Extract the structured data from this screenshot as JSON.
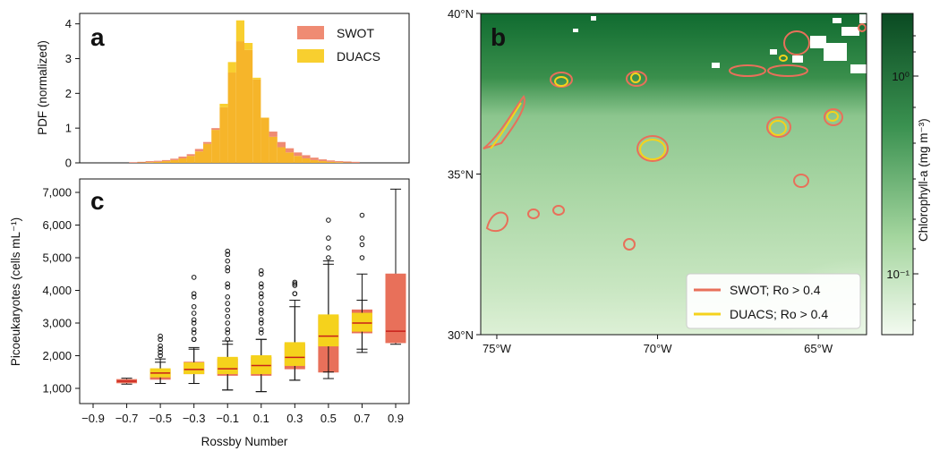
{
  "colors": {
    "swot": "#e8705a",
    "duacs": "#f5d21c",
    "swot_hist": "#ef8b73",
    "duacs_hist": "#f8cf2f",
    "overlap_hist": "#f6b52a",
    "median": "#c8201a",
    "map_dark": "#0e5a2c",
    "map_light": "#eef7ea"
  },
  "chart_data": [
    {
      "panel": "a",
      "type": "bar",
      "ylabel": "PDF (normalized)",
      "ylim": [
        0,
        4.3
      ],
      "y_ticks": [
        "0",
        "1",
        "2",
        "3",
        "4"
      ],
      "xlim": [
        -1.0,
        1.0
      ],
      "legend": "top-right",
      "series": [
        {
          "name": "SWOT",
          "bin_start": -0.7,
          "bin_width": 0.05,
          "values": [
            0.02,
            0.03,
            0.05,
            0.06,
            0.08,
            0.12,
            0.18,
            0.25,
            0.4,
            0.6,
            1.0,
            1.6,
            2.6,
            3.5,
            3.25,
            2.4,
            1.3,
            0.9,
            0.6,
            0.42,
            0.3,
            0.22,
            0.15,
            0.1,
            0.07,
            0.05,
            0.04,
            0.03
          ]
        },
        {
          "name": "DUACS",
          "bin_start": -0.7,
          "bin_width": 0.05,
          "values": [
            0.0,
            0.01,
            0.02,
            0.03,
            0.05,
            0.08,
            0.13,
            0.2,
            0.33,
            0.55,
            0.95,
            1.7,
            2.9,
            4.1,
            3.45,
            2.45,
            1.3,
            0.75,
            0.45,
            0.3,
            0.2,
            0.13,
            0.08,
            0.05,
            0.03,
            0.02,
            0.01,
            0.0
          ]
        }
      ]
    },
    {
      "panel": "c",
      "type": "box",
      "xlabel": "Rossby Number",
      "ylabel": "Picoeukaryotes (cells mL⁻¹)",
      "ylim": [
        600,
        7300
      ],
      "x_ticks": [
        "−0.9",
        "−0.7",
        "−0.5",
        "−0.3",
        "−0.1",
        "0.1",
        "0.3",
        "0.5",
        "0.7",
        "0.9"
      ],
      "y_ticks": [
        "1,000",
        "2,000",
        "3,000",
        "4,000",
        "5,000",
        "6,000",
        "7,000"
      ],
      "series": [
        {
          "name": "SWOT",
          "boxes": [
            {
              "x": -0.7,
              "q1": 1170,
              "median": 1220,
              "q3": 1270,
              "wlo": 1130,
              "whi": 1310,
              "outliers": []
            },
            {
              "x": -0.5,
              "q1": 1280,
              "median": 1420,
              "q3": 1550,
              "wlo": 1150,
              "whi": 1800,
              "outliers": [
                2000,
                2200,
                2500
              ]
            },
            {
              "x": -0.3,
              "q1": 1450,
              "median": 1650,
              "q3": 1800,
              "wlo": 1150,
              "whi": 2200,
              "outliers": [
                2500,
                2700,
                3000,
                3300,
                3800,
                4400
              ]
            },
            {
              "x": -0.1,
              "q1": 1400,
              "median": 1650,
              "q3": 1900,
              "wlo": 950,
              "whi": 2350,
              "outliers": [
                2500,
                2800,
                3200,
                3600,
                4100,
                4600,
                4900,
                5200
              ]
            },
            {
              "x": 0.1,
              "q1": 1400,
              "median": 1700,
              "q3": 1950,
              "wlo": 900,
              "whi": 2500,
              "outliers": [
                2700,
                3000,
                3300,
                3600,
                3900,
                4200,
                4600
              ]
            },
            {
              "x": 0.3,
              "q1": 1600,
              "median": 1950,
              "q3": 2350,
              "wlo": 1250,
              "whi": 3500,
              "outliers": [
                3900,
                4150,
                4250
              ]
            },
            {
              "x": 0.5,
              "q1": 1500,
              "median": 2550,
              "q3": 3200,
              "wlo": 1300,
              "whi": 4900,
              "outliers": [
                5300,
                6150
              ]
            },
            {
              "x": 0.7,
              "q1": 2700,
              "median": 3000,
              "q3": 3400,
              "wlo": 2100,
              "whi": 3700,
              "outliers": []
            },
            {
              "x": 0.9,
              "q1": 2400,
              "median": 2750,
              "q3": 4500,
              "wlo": 2350,
              "whi": 7100,
              "outliers": []
            }
          ]
        },
        {
          "name": "DUACS",
          "boxes": [
            {
              "x": -0.5,
              "q1": 1350,
              "median": 1470,
              "q3": 1600,
              "wlo": 1150,
              "whi": 1900,
              "outliers": [
                2100,
                2300,
                2600
              ]
            },
            {
              "x": -0.3,
              "q1": 1450,
              "median": 1580,
              "q3": 1780,
              "wlo": 1150,
              "whi": 2250,
              "outliers": [
                2500,
                2800,
                3100,
                3500,
                3900
              ]
            },
            {
              "x": -0.1,
              "q1": 1450,
              "median": 1600,
              "q3": 1950,
              "wlo": 950,
              "whi": 2450,
              "outliers": [
                2700,
                3000,
                3400,
                3800,
                4200,
                4700,
                5100
              ]
            },
            {
              "x": 0.1,
              "q1": 1450,
              "median": 1700,
              "q3": 2000,
              "wlo": 900,
              "whi": 2500,
              "outliers": [
                2800,
                3100,
                3400,
                3800,
                4100,
                4500
              ]
            },
            {
              "x": 0.3,
              "q1": 1700,
              "median": 1950,
              "q3": 2400,
              "wlo": 1250,
              "whi": 3700,
              "outliers": [
                3900,
                4200
              ]
            },
            {
              "x": 0.5,
              "q1": 2300,
              "median": 2600,
              "q3": 3250,
              "wlo": 1500,
              "whi": 4800,
              "outliers": [
                5000,
                5600
              ]
            },
            {
              "x": 0.7,
              "q1": 2750,
              "median": 3000,
              "q3": 3300,
              "wlo": 2200,
              "whi": 4500,
              "outliers": [
                5000,
                5400,
                5600,
                6300
              ]
            }
          ]
        }
      ]
    },
    {
      "panel": "b",
      "type": "heatmap",
      "x_ticks": [
        "75°W",
        "70°W",
        "65°W"
      ],
      "y_ticks": [
        "40°N",
        "35°N",
        "30°N"
      ],
      "xlim": [
        -75.5,
        -63.5
      ],
      "ylim": [
        30,
        40
      ],
      "colorbar": {
        "label": "Chlorophyll-a (mg m⁻³)",
        "scale": "log",
        "ticks": [
          "10⁰",
          "10⁻¹"
        ]
      },
      "legend": [
        {
          "name": "SWOT; Ro > 0.4"
        },
        {
          "name": "DUACS; Ro > 0.4"
        }
      ]
    }
  ]
}
